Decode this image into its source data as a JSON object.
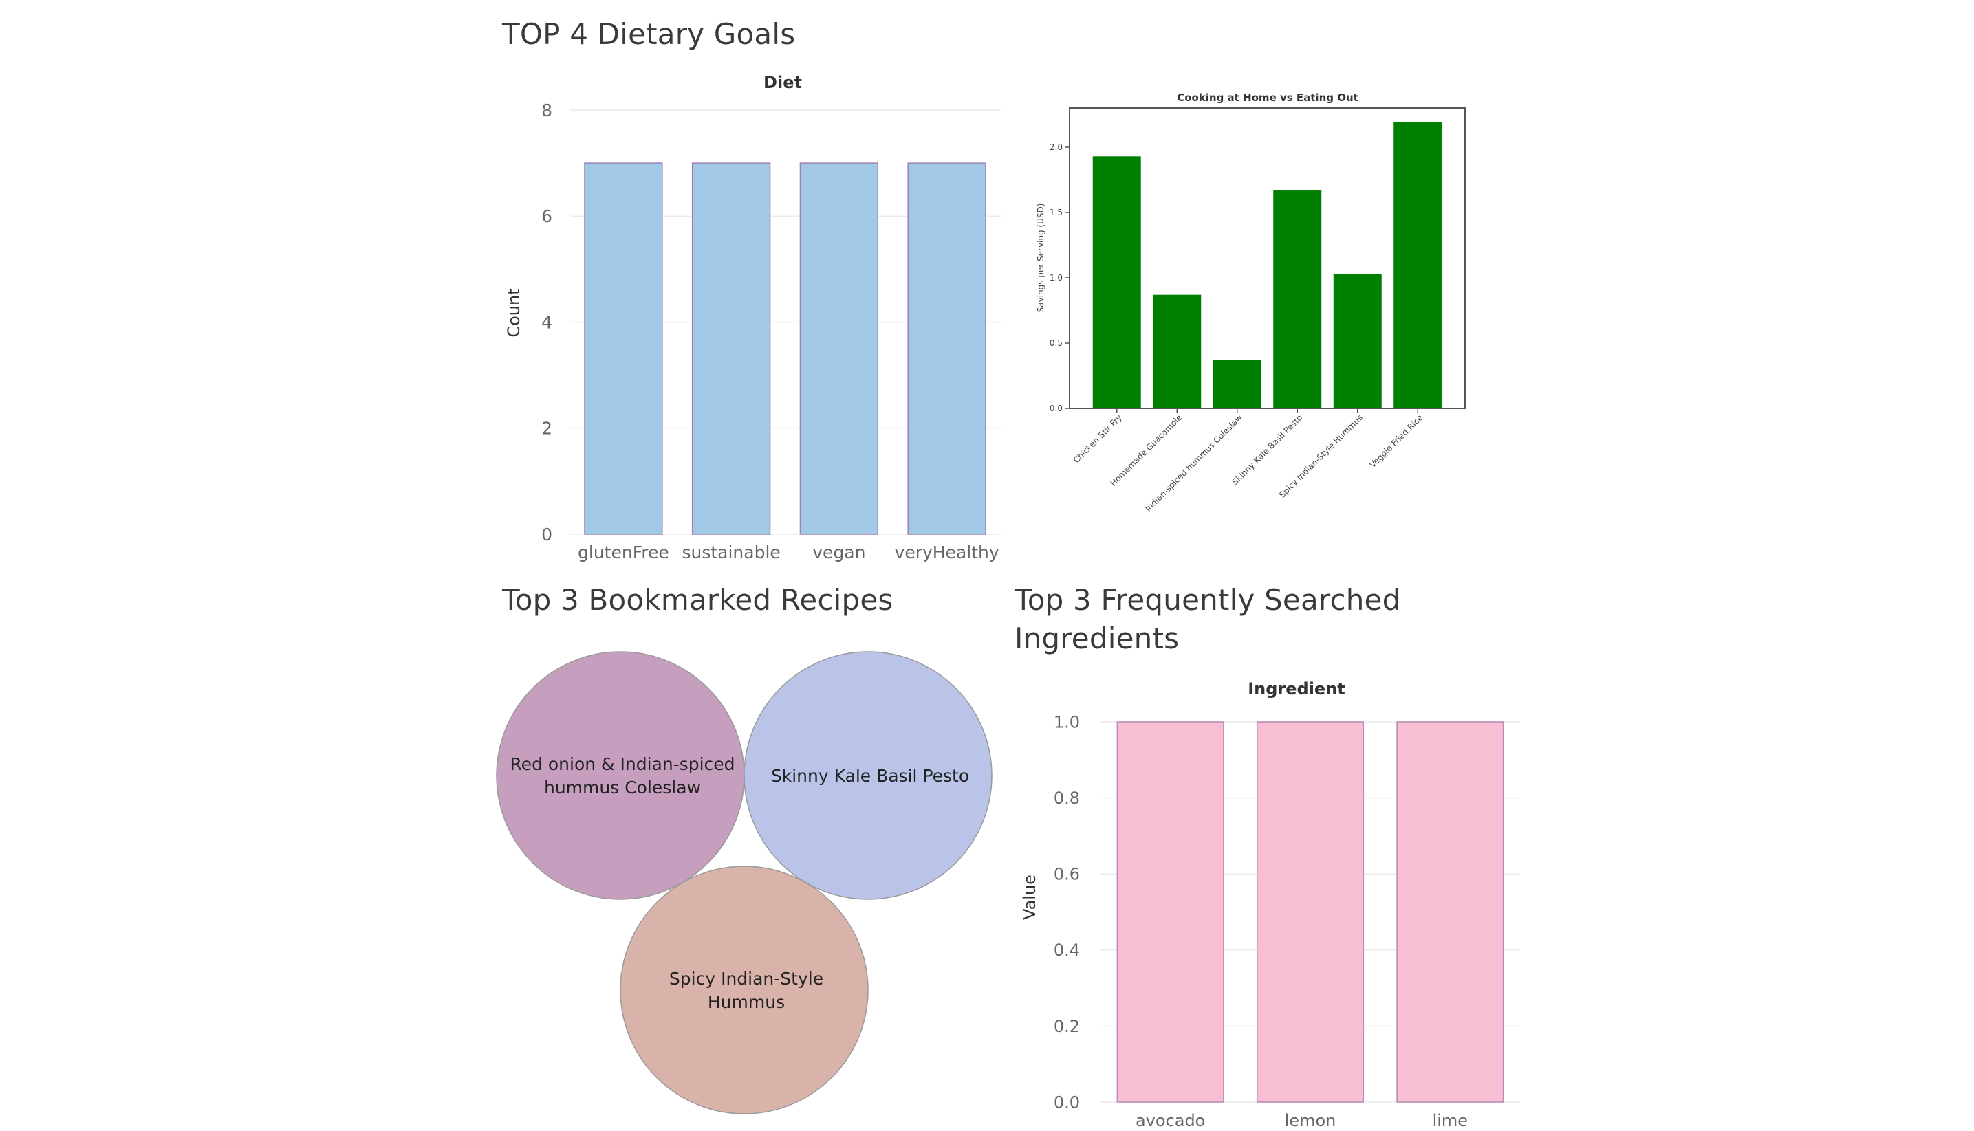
{
  "titles": {
    "dietary": "TOP 4 Dietary Goals",
    "bookmarked": "Top 3 Bookmarked Recipes",
    "ingredients_line1": "Top 3 Frequently Searched",
    "ingredients_line2": "Ingredients"
  },
  "chart_data": [
    {
      "id": "diet",
      "type": "bar",
      "title": "Diet",
      "xlabel": "",
      "ylabel": "Count",
      "categories": [
        "glutenFree",
        "sustainable",
        "vegan",
        "veryHealthy"
      ],
      "values": [
        7,
        7,
        7,
        7
      ],
      "ylim": [
        0,
        8
      ],
      "yticks": [
        "0",
        "2",
        "4",
        "6",
        "8"
      ],
      "grid": true,
      "colors": {
        "fill": "#a1c9e6",
        "stroke": "#9d7fb3"
      }
    },
    {
      "id": "savings",
      "type": "bar",
      "title": "Cooking at Home vs Eating Out",
      "xlabel": "",
      "ylabel": "Savings per Serving (USD)",
      "categories": [
        "Chicken Stir Fry",
        "Homemade Guacamole",
        "Red onion & Indian-spiced hummus Coleslaw",
        "Skinny Kale Basil Pesto",
        "Spicy Indian-Style Hummus",
        "Veggie Fried Rice"
      ],
      "values": [
        1.93,
        0.87,
        0.37,
        1.67,
        1.03,
        2.19
      ],
      "ylim": [
        0,
        2.3
      ],
      "yticks": [
        "0.0",
        "0.5",
        "1.0",
        "1.5",
        "2.0"
      ],
      "grid": false,
      "colors": {
        "fill": "#008000",
        "stroke": "#008000"
      }
    },
    {
      "id": "bookmarks",
      "type": "bubble",
      "labels": [
        [
          "Red onion & Indian-spiced",
          "hummus Coleslaw"
        ],
        [
          "Skinny Kale Basil Pesto"
        ],
        [
          "Spicy Indian-Style",
          "Hummus"
        ]
      ],
      "colors": [
        "#c69ebe",
        "#bac4e8",
        "#d9b2aa"
      ]
    },
    {
      "id": "ingredients",
      "type": "bar",
      "title": "Ingredient",
      "xlabel": "",
      "ylabel": "Value",
      "categories": [
        "avocado",
        "lemon",
        "lime"
      ],
      "values": [
        1.0,
        1.0,
        1.0
      ],
      "ylim": [
        0,
        1.0
      ],
      "yticks": [
        "0.0",
        "0.2",
        "0.4",
        "0.6",
        "0.8",
        "1.0"
      ],
      "grid": true,
      "colors": {
        "fill": "#f8bfd4",
        "stroke": "#b889b5"
      }
    }
  ]
}
